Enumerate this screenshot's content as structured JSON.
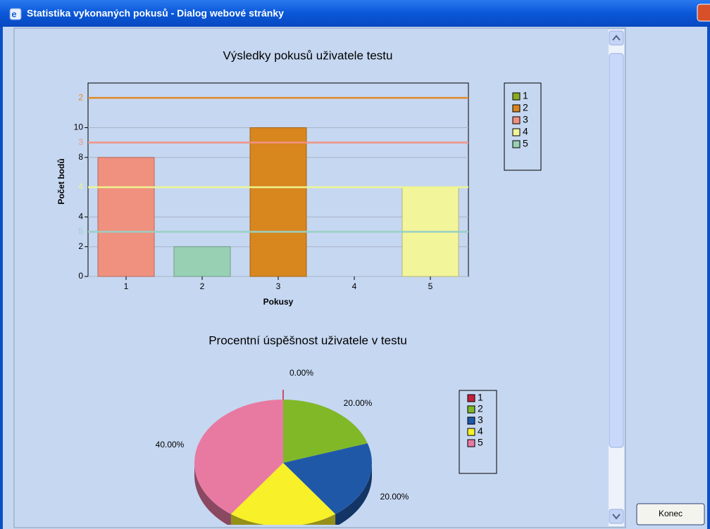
{
  "window": {
    "title": "Statistika vykonaných pokusů - Dialog webové stránky"
  },
  "button": {
    "label": "Konec"
  },
  "chart_data": [
    {
      "type": "bar",
      "title": "Výsledky pokusů uživatele testu",
      "x_label": "Pokusy",
      "y_label": "Počet bodů",
      "categories": [
        "1",
        "2",
        "3",
        "4",
        "5"
      ],
      "values": [
        8,
        2,
        10,
        0,
        6
      ],
      "colors": [
        "#f0907e",
        "#98d0b4",
        "#d8861e",
        "#8aaa20",
        "#f2f59a"
      ],
      "ylim": [
        0,
        13
      ],
      "yticks": [
        0,
        2,
        4,
        8,
        10
      ],
      "grid": true,
      "reference_lines": [
        {
          "value": 12,
          "label": "2",
          "color": "#e08a28"
        },
        {
          "value": 9,
          "label": "3",
          "color": "#f09484"
        },
        {
          "value": 6,
          "label": "4",
          "color": "#eef590"
        },
        {
          "value": 3,
          "label": "5",
          "color": "#98d0c4"
        }
      ],
      "legend": [
        {
          "name": "1",
          "color": "#8aaa20"
        },
        {
          "name": "2",
          "color": "#d8861e"
        },
        {
          "name": "3",
          "color": "#f0907e"
        },
        {
          "name": "4",
          "color": "#f2f59a"
        },
        {
          "name": "5",
          "color": "#98d0b4"
        }
      ]
    },
    {
      "type": "pie",
      "title": "Procentní úspěšnost uživatele v testu",
      "categories": [
        "1",
        "2",
        "3",
        "4",
        "5"
      ],
      "values": [
        0,
        20,
        20,
        20,
        40
      ],
      "value_labels": [
        "0.00%",
        "20.00%",
        "20.00%",
        null,
        "40.00%"
      ],
      "colors": [
        "#c8203c",
        "#80b828",
        "#2058a8",
        "#f8f028",
        "#e87aa2"
      ]
    }
  ]
}
